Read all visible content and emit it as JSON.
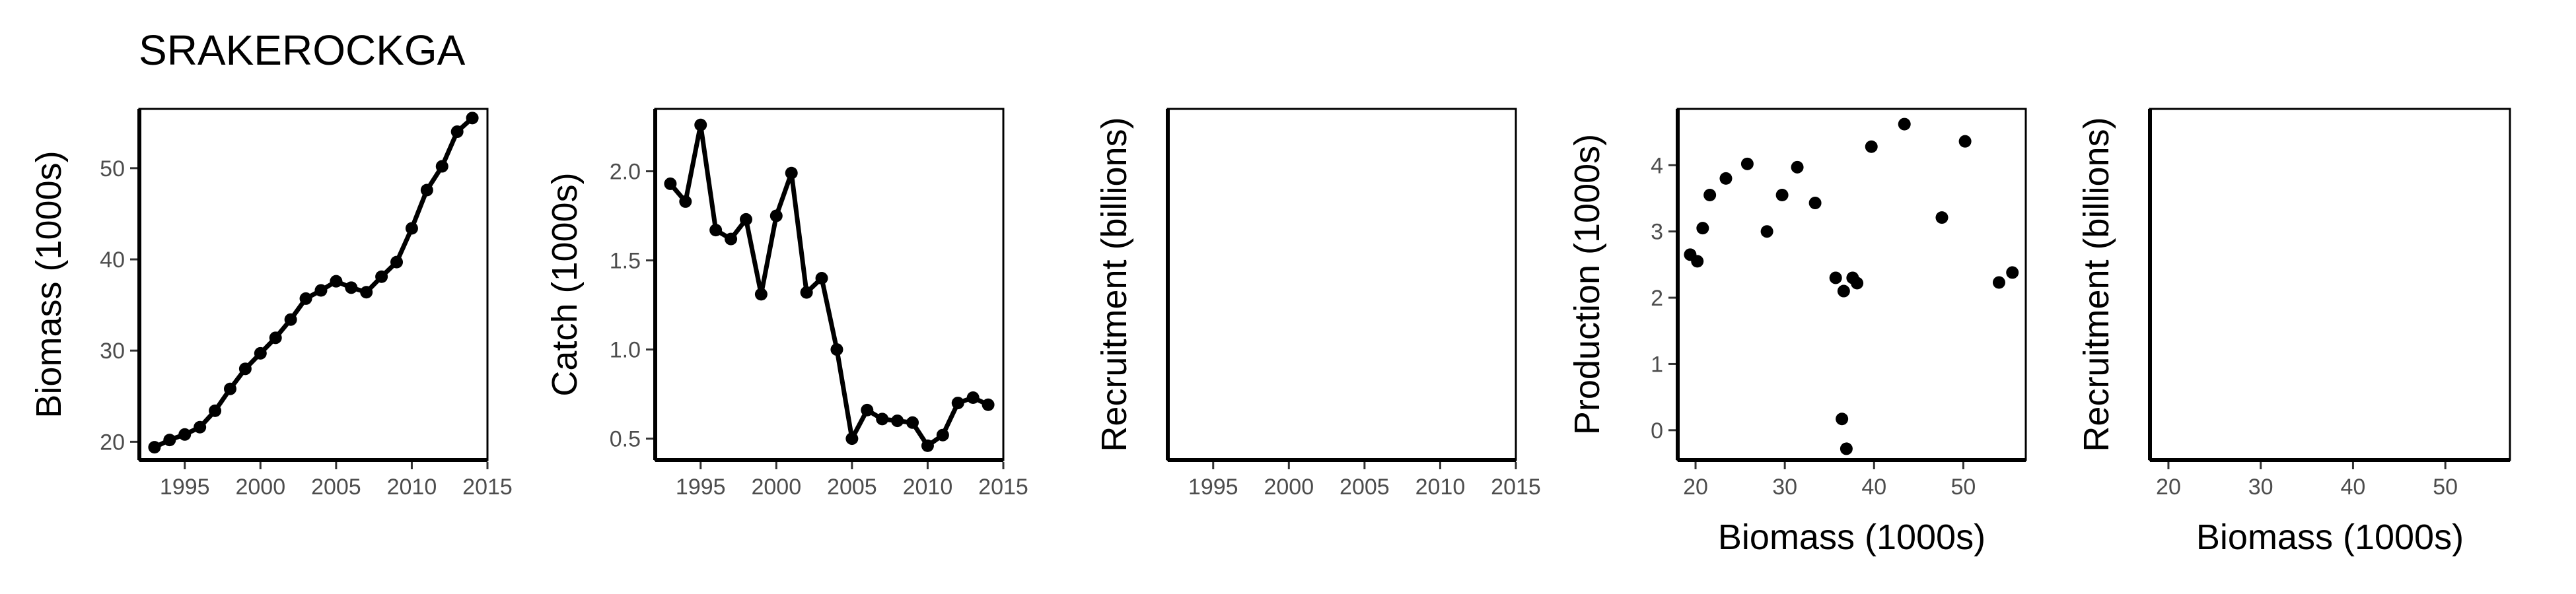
{
  "page": {
    "title": "SRAKEROCKGA"
  },
  "style": {
    "line_color": "#000000",
    "point_color": "#000000",
    "tick_label_color": "#4d4d4d",
    "background": "#ffffff"
  },
  "chart_data": [
    {
      "type": "line",
      "xlabel": "",
      "ylabel": "Biomass (1000s)",
      "xlim": [
        1992,
        2015
      ],
      "ylim": [
        18,
        56.5
      ],
      "xticks": [
        1995,
        2000,
        2005,
        2010,
        2015
      ],
      "yticks": [
        20,
        30,
        40,
        50
      ],
      "x": [
        1993,
        1994,
        1995,
        1996,
        1997,
        1998,
        1999,
        2000,
        2001,
        2002,
        2003,
        2004,
        2005,
        2006,
        2007,
        2008,
        2009,
        2010,
        2011,
        2012,
        2013,
        2014
      ],
      "y": [
        19.4,
        20.2,
        20.8,
        21.6,
        23.4,
        25.8,
        28.0,
        29.7,
        31.4,
        33.4,
        35.7,
        36.6,
        37.6,
        36.9,
        36.4,
        38.1,
        39.7,
        43.4,
        47.6,
        50.2,
        54.0,
        55.5
      ]
    },
    {
      "type": "line",
      "xlabel": "",
      "ylabel": "Catch (1000s)",
      "xlim": [
        1992,
        2015
      ],
      "ylim": [
        0.38,
        2.35
      ],
      "xticks": [
        1995,
        2000,
        2005,
        2010,
        2015
      ],
      "yticks": [
        0.5,
        1.0,
        1.5,
        2.0
      ],
      "ytick_labels": [
        "0.5",
        "1.0",
        "1.5",
        "2.0"
      ],
      "x": [
        1993,
        1994,
        1995,
        1996,
        1997,
        1998,
        1999,
        2000,
        2001,
        2002,
        2003,
        2004,
        2005,
        2006,
        2007,
        2008,
        2009,
        2010,
        2011,
        2012,
        2013,
        2014
      ],
      "y": [
        1.93,
        1.83,
        2.26,
        1.67,
        1.62,
        1.73,
        1.31,
        1.75,
        1.99,
        1.32,
        1.4,
        1.0,
        0.5,
        0.66,
        0.61,
        0.6,
        0.59,
        0.46,
        0.52,
        0.7,
        0.73,
        0.69
      ]
    },
    {
      "type": "line",
      "xlabel": "",
      "ylabel": "Recruitment (billions)",
      "xlim": [
        1992,
        2015
      ],
      "xticks": [
        1995,
        2000,
        2005,
        2010,
        2015
      ],
      "yticks": [],
      "x": [],
      "y": []
    },
    {
      "type": "scatter",
      "xlabel": "Biomass (1000s)",
      "ylabel": "Production (1000s)",
      "xlim": [
        18,
        57
      ],
      "ylim": [
        -0.45,
        4.85
      ],
      "xticks": [
        20,
        30,
        40,
        50
      ],
      "yticks": [
        0,
        1,
        2,
        3,
        4
      ],
      "x": [
        19.4,
        20.2,
        20.8,
        21.6,
        23.4,
        25.8,
        28.0,
        29.7,
        31.4,
        33.4,
        35.7,
        36.6,
        37.6,
        36.9,
        36.4,
        38.1,
        39.7,
        43.4,
        47.6,
        50.2,
        54.0,
        55.5
      ],
      "y": [
        2.65,
        2.55,
        3.05,
        3.55,
        3.8,
        4.02,
        3.0,
        3.55,
        3.97,
        3.43,
        2.3,
        2.1,
        2.3,
        -0.28,
        0.17,
        2.22,
        4.28,
        4.62,
        3.21,
        4.36,
        2.23,
        2.38
      ]
    },
    {
      "type": "scatter",
      "xlabel": "Biomass (1000s)",
      "ylabel": "Recruitment (billions)",
      "xlim": [
        18,
        57
      ],
      "xticks": [
        20,
        30,
        40,
        50
      ],
      "yticks": [],
      "x": [],
      "y": []
    }
  ]
}
